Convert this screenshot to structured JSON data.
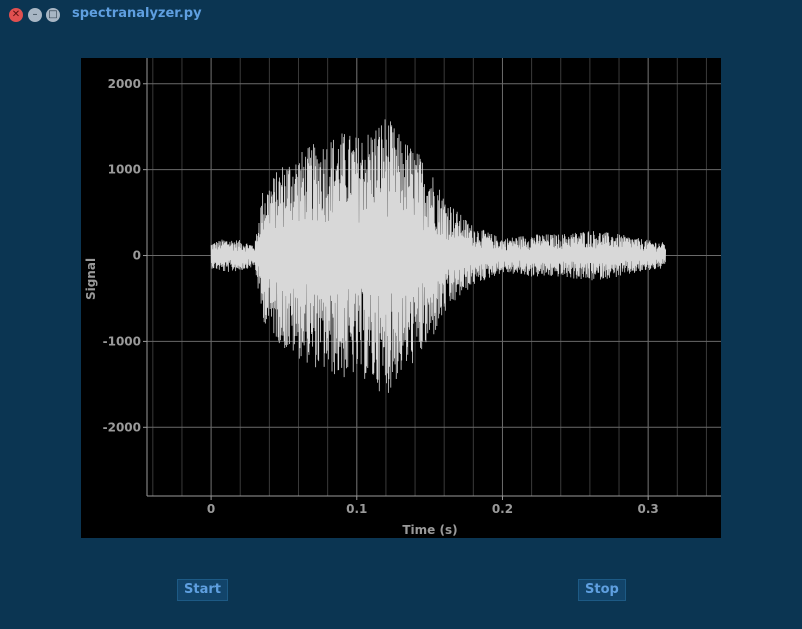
{
  "window": {
    "title": "spectranalyzer.py",
    "controls": {
      "close": "✕",
      "minimize": "–",
      "maximize": "□"
    }
  },
  "buttons": {
    "start_label": "Start",
    "stop_label": "Stop"
  },
  "colors": {
    "background": "#0b3552",
    "plot_bg": "#000000",
    "trace": "#d8d8d8",
    "grid": "#6a6a6a",
    "axis_text": "#9a9a9a",
    "accent": "#5f9fe0"
  },
  "chart_data": {
    "type": "line",
    "title": "",
    "xlabel": "Time (s)",
    "ylabel": "Signal",
    "xlim": [
      -0.044,
      0.35
    ],
    "ylim": [
      -2800,
      2300
    ],
    "xticks": [
      0,
      0.1,
      0.2,
      0.3
    ],
    "xtick_labels": [
      "0",
      "0.1",
      "0.2",
      "0.3"
    ],
    "yticks": [
      -2000,
      -1000,
      0,
      1000,
      2000
    ],
    "ytick_labels": [
      "-2000",
      "-1000",
      "0",
      "1000",
      "2000"
    ],
    "grid": true,
    "series": [
      {
        "name": "",
        "envelope": {
          "t": [
            0,
            0.01,
            0.02,
            0.03,
            0.035,
            0.05,
            0.07,
            0.09,
            0.1,
            0.11,
            0.12,
            0.13,
            0.14,
            0.15,
            0.16,
            0.17,
            0.18,
            0.2,
            0.22,
            0.24,
            0.26,
            0.28,
            0.3,
            0.312
          ],
          "amplitude": [
            150,
            200,
            180,
            130,
            750,
            1100,
            1300,
            1450,
            1400,
            1500,
            1650,
            1400,
            1250,
            1050,
            700,
            500,
            350,
            200,
            250,
            250,
            300,
            250,
            180,
            150
          ]
        }
      }
    ]
  }
}
